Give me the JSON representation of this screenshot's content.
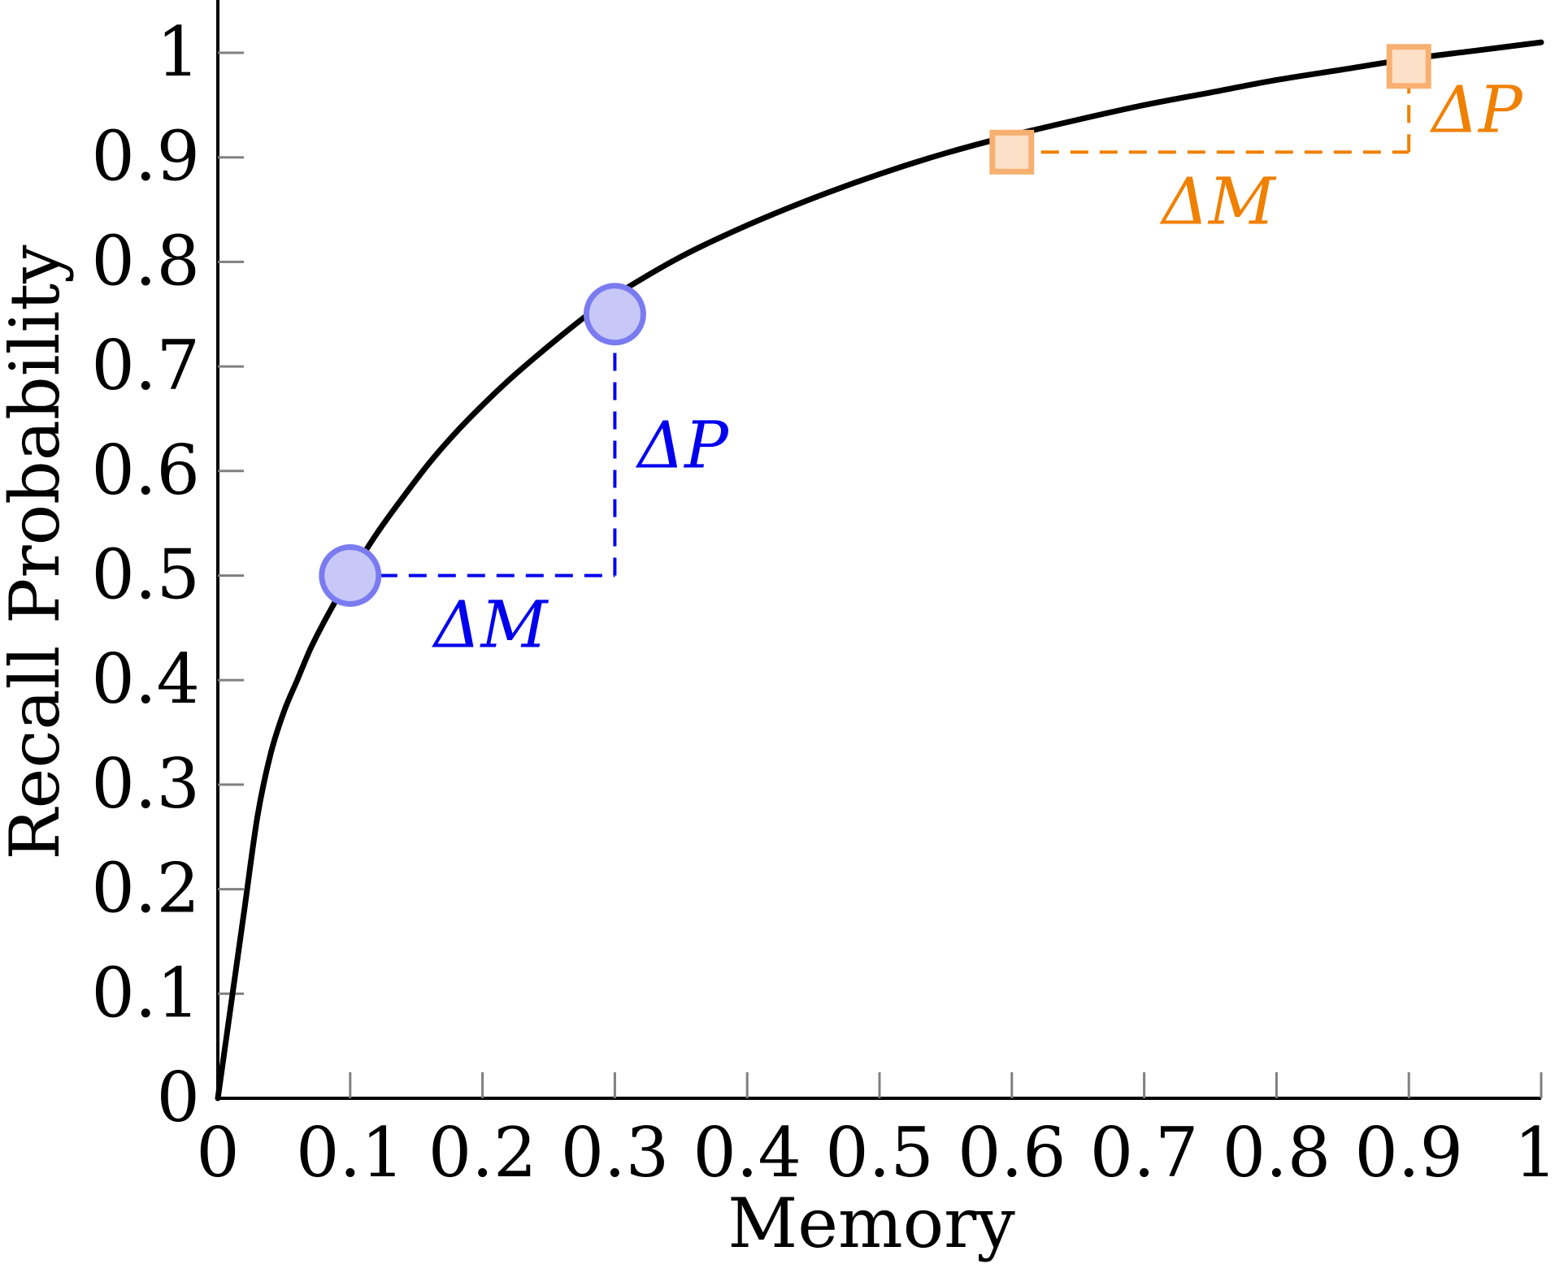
{
  "chart_data": {
    "type": "line",
    "title": "",
    "xlabel": "Memory",
    "ylabel": "Recall Probability",
    "xlim": [
      0,
      1
    ],
    "ylim": [
      0,
      1
    ],
    "x_ticks": [
      0,
      0.1,
      0.2,
      0.3,
      0.4,
      0.5,
      0.6,
      0.7,
      0.8,
      0.9,
      1
    ],
    "x_tick_labels": [
      "0",
      "0.1",
      "0.2",
      "0.3",
      "0.4",
      "0.5",
      "0.6",
      "0.7",
      "0.8",
      "0.9",
      "1"
    ],
    "y_ticks": [
      0,
      0.1,
      0.2,
      0.3,
      0.4,
      0.5,
      0.6,
      0.7,
      0.8,
      0.9,
      1
    ],
    "y_tick_labels": [
      "0",
      "0.1",
      "0.2",
      "0.3",
      "0.4",
      "0.5",
      "0.6",
      "0.7",
      "0.8",
      "0.9",
      "1"
    ],
    "grid": false,
    "series": [
      {
        "color": "#000000",
        "x": [
          0,
          0.01,
          0.02,
          0.03,
          0.04,
          0.05,
          0.06,
          0.07,
          0.08,
          0.09,
          0.1,
          0.12,
          0.14,
          0.16,
          0.18,
          0.2,
          0.22,
          0.24,
          0.26,
          0.28,
          0.3,
          0.35,
          0.4,
          0.45,
          0.5,
          0.55,
          0.6,
          0.65,
          0.7,
          0.75,
          0.8,
          0.85,
          0.9,
          0.95,
          1
        ],
        "y": [
          0,
          0.09,
          0.18,
          0.27,
          0.33,
          0.37,
          0.4,
          0.43,
          0.455,
          0.478,
          0.5,
          0.54,
          0.575,
          0.608,
          0.637,
          0.663,
          0.687,
          0.709,
          0.73,
          0.75,
          0.768,
          0.805,
          0.835,
          0.861,
          0.884,
          0.904,
          0.921,
          0.936,
          0.95,
          0.962,
          0.974,
          0.984,
          0.994,
          1.002,
          1.01
        ]
      }
    ],
    "annotations": [
      {
        "marker": "circle",
        "color": "#0000ee",
        "fill": "#c8c8f8",
        "stroke": "#7b7bf0",
        "points": [
          [
            0.1,
            0.5
          ],
          [
            0.3,
            0.75
          ]
        ],
        "corner": [
          0.3,
          0.5
        ],
        "dm_label": "ΔM",
        "dp_label": "ΔP"
      },
      {
        "marker": "square",
        "color": "#f08000",
        "fill": "#fde0c8",
        "stroke": "#f8b070",
        "points": [
          [
            0.6,
            0.905
          ],
          [
            0.9,
            0.987
          ]
        ],
        "corner": [
          0.9,
          0.905
        ],
        "dm_label": "ΔM",
        "dp_label": "ΔP"
      }
    ]
  }
}
